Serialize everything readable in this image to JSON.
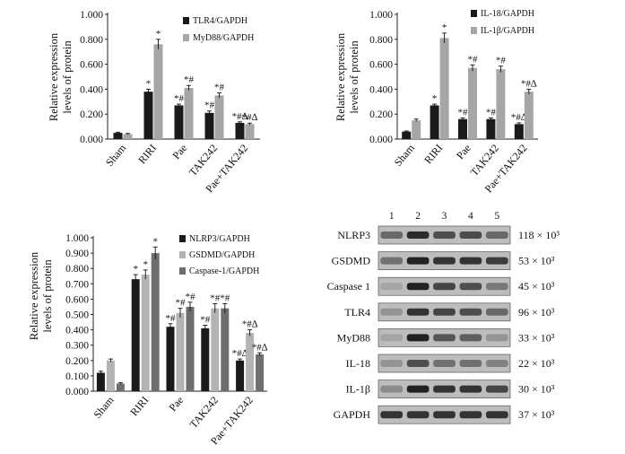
{
  "chart_data": [
    {
      "type": "bar",
      "ylabel": "Relative expression levels of protein",
      "ylabel_lines": [
        "Relative expression",
        "levels of protein"
      ],
      "ylim": [
        0,
        1.0
      ],
      "yticks": [
        "0.000",
        "0.200",
        "0.400",
        "0.600",
        "0.800",
        "1.000"
      ],
      "categories": [
        "Sham",
        "RIRI",
        "Pae",
        "TAK242",
        "Pae+TAK242"
      ],
      "series": [
        {
          "name": "TLR4/GAPDH",
          "color": "#1a1a1a",
          "values": [
            0.05,
            0.38,
            0.27,
            0.21,
            0.13
          ],
          "errors": [
            0.005,
            0.02,
            0.01,
            0.015,
            0.008
          ],
          "marks": [
            "",
            "*",
            "*#",
            "*#",
            "*#∆"
          ]
        },
        {
          "name": "MyD88/GAPDH",
          "color": "#a6a6a6",
          "values": [
            0.04,
            0.76,
            0.41,
            0.35,
            0.12
          ],
          "errors": [
            0.005,
            0.04,
            0.02,
            0.02,
            0.008
          ],
          "marks": [
            "",
            "*",
            "*#",
            "*#",
            "*#∆"
          ]
        }
      ]
    },
    {
      "type": "bar",
      "ylabel": "Relative expression levels of protein",
      "ylabel_lines": [
        "Relative expression",
        "levels of protein"
      ],
      "ylim": [
        0,
        1.0
      ],
      "yticks": [
        "0.000",
        "0.200",
        "0.400",
        "0.600",
        "0.800",
        "1.000"
      ],
      "categories": [
        "Sham",
        "RIRI",
        "Pae",
        "TAK242",
        "Pae+TAK242"
      ],
      "series": [
        {
          "name": "IL-18/GAPDH",
          "color": "#1a1a1a",
          "values": [
            0.06,
            0.27,
            0.16,
            0.16,
            0.12
          ],
          "errors": [
            0.005,
            0.01,
            0.01,
            0.01,
            0.01
          ],
          "marks": [
            "",
            "*",
            "*#",
            "*#",
            "*#∆"
          ]
        },
        {
          "name": "IL-1β/GAPDH",
          "color": "#a6a6a6",
          "values": [
            0.15,
            0.81,
            0.57,
            0.56,
            0.38
          ],
          "errors": [
            0.01,
            0.04,
            0.025,
            0.025,
            0.02
          ],
          "marks": [
            "",
            "*",
            "*#",
            "*#",
            "*#∆"
          ]
        }
      ]
    },
    {
      "type": "bar",
      "ylabel": "Relative expression levels of protein",
      "ylabel_lines": [
        "Relative expression",
        "levels of protein"
      ],
      "ylim": [
        0,
        1.0
      ],
      "yticks": [
        "0.000",
        "0.100",
        "0.200",
        "0.300",
        "0.400",
        "0.500",
        "0.600",
        "0.700",
        "0.800",
        "0.900",
        "1.000"
      ],
      "categories": [
        "Sham",
        "RIRI",
        "Pae",
        "TAK242",
        "Pae+TAK242"
      ],
      "series": [
        {
          "name": "NLRP3/GAPDH",
          "color": "#1a1a1a",
          "values": [
            0.12,
            0.73,
            0.42,
            0.41,
            0.2
          ],
          "errors": [
            0.01,
            0.03,
            0.02,
            0.02,
            0.01
          ],
          "marks": [
            "",
            "*",
            "*#",
            "*#",
            "*#∆"
          ]
        },
        {
          "name": "GSDMD/GAPDH",
          "color": "#b3b3b3",
          "values": [
            0.2,
            0.76,
            0.51,
            0.54,
            0.38
          ],
          "errors": [
            0.01,
            0.03,
            0.03,
            0.03,
            0.02
          ],
          "marks": [
            "",
            "*",
            "*#",
            "*#",
            "*#∆"
          ]
        },
        {
          "name": "Caspase-1/GAPDH",
          "color": "#6e6e6e",
          "values": [
            0.05,
            0.9,
            0.55,
            0.54,
            0.24
          ],
          "errors": [
            0.005,
            0.04,
            0.03,
            0.03,
            0.01
          ],
          "marks": [
            "",
            "*",
            "*#",
            "*#",
            "*#∆"
          ]
        }
      ]
    }
  ],
  "blot": {
    "lanes": [
      "1",
      "2",
      "3",
      "4",
      "5"
    ],
    "rows": [
      {
        "protein": "NLRP3",
        "mw": "118 × 10³",
        "intensity": [
          0.55,
          0.9,
          0.7,
          0.72,
          0.55
        ]
      },
      {
        "protein": "GSDMD",
        "mw": "53 × 10³",
        "intensity": [
          0.5,
          0.95,
          0.85,
          0.85,
          0.8
        ]
      },
      {
        "protein": "Caspase 1",
        "mw": "45 × 10³",
        "intensity": [
          0.2,
          0.95,
          0.75,
          0.7,
          0.45
        ]
      },
      {
        "protein": "TLR4",
        "mw": "96 × 10³",
        "intensity": [
          0.3,
          0.85,
          0.75,
          0.7,
          0.55
        ]
      },
      {
        "protein": "MyD88",
        "mw": "33 × 10³",
        "intensity": [
          0.2,
          0.95,
          0.65,
          0.6,
          0.3
        ]
      },
      {
        "protein": "IL-18",
        "mw": "22 × 10³",
        "intensity": [
          0.3,
          0.7,
          0.5,
          0.5,
          0.4
        ]
      },
      {
        "protein": "IL-1β",
        "mw": "30 × 10³",
        "intensity": [
          0.35,
          0.95,
          0.85,
          0.85,
          0.75
        ]
      },
      {
        "protein": "GAPDH",
        "mw": "37 × 10³",
        "intensity": [
          0.85,
          0.85,
          0.85,
          0.85,
          0.85
        ]
      }
    ]
  }
}
